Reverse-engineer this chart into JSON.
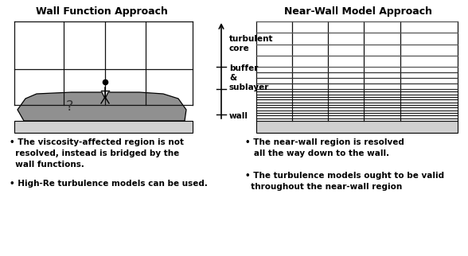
{
  "title_left": "Wall Function Approach",
  "title_right": "Near-Wall Model Approach",
  "bg_color": "#ffffff",
  "gray_light": "#d0d0d0",
  "gray_medium": "#909090",
  "grid_color": "#111111",
  "label_turbulent": "turbulent\ncore",
  "label_buffer": "buffer\n&\nsublayer",
  "label_wall": "wall",
  "bullet_left1": "• The viscosity-affected region is not\n  resolved, instead is bridged by the\n  wall functions.",
  "bullet_left2": "• High-Re turbulence models can be used.",
  "bullet_right1": "• The near-wall region is resolved\n   all the way down to the wall.",
  "bullet_right2": "• The turbulence models ought to be valid\n  throughout the near-wall region"
}
